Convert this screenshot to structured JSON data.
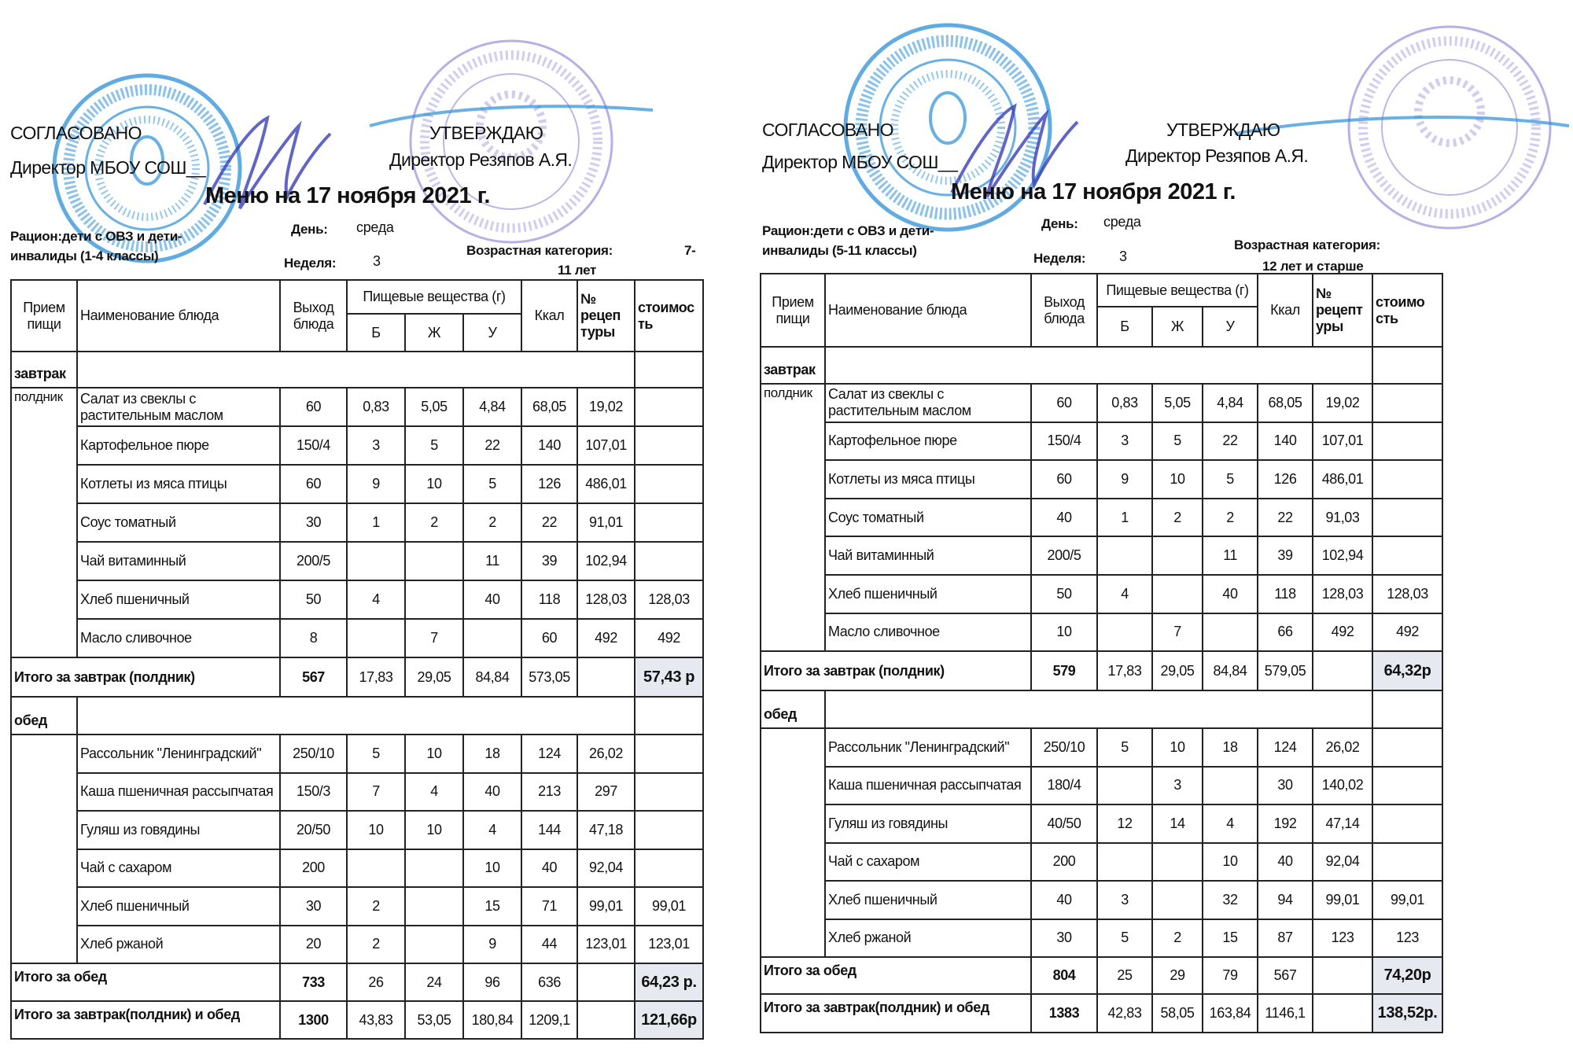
{
  "panels": [
    {
      "agreed": "СОГЛАСОВАНО",
      "agreed_by": "Директор МБОУ СОШ__",
      "approve": "УТВЕРЖДАЮ",
      "approve_by": "Директор Резяпов А.Я.",
      "title": "Меню на 17 ноября 2021 г.",
      "ration_line1": "Рацион:дети с ОВЗ и дети-",
      "ration_line2": "инвалиды (1-4 классы)",
      "day_label": "День:",
      "day_value": "среда",
      "week_label": "Неделя:",
      "week_value": "3",
      "age_label": "Возрастная категория:",
      "age_value_a": "7-",
      "age_value_b": "11 лет",
      "headers": {
        "meal": "Прием пищи",
        "dish": "Наименование блюда",
        "yield": "Выход блюда",
        "nutrients": "Пищевые вещества (г)",
        "b": "Б",
        "zh": "Ж",
        "u": "У",
        "kcal": "Ккал",
        "recipe": "№ рецеп туры",
        "cost": "стоимос ть"
      },
      "breakfast": {
        "label": "завтрак",
        "sublabel": "полдник",
        "items": [
          [
            "Салат из свеклы с растительным маслом",
            "60",
            "0,83",
            "5,05",
            "4,84",
            "68,05",
            "19,02",
            ""
          ],
          [
            "Картофельное пюре",
            "150/4",
            "3",
            "5",
            "22",
            "140",
            "107,01",
            ""
          ],
          [
            "Котлеты из мяса птицы",
            "60",
            "9",
            "10",
            "5",
            "126",
            "486,01",
            ""
          ],
          [
            "Соус томатный",
            "30",
            "1",
            "2",
            "2",
            "22",
            "91,01",
            ""
          ],
          [
            "Чай витаминный",
            "200/5",
            "",
            "",
            "11",
            "39",
            "102,94",
            ""
          ],
          [
            "Хлеб пшеничный",
            "50",
            "4",
            "",
            "40",
            "118",
            "128,03",
            "128,03"
          ],
          [
            "Масло сливочное",
            "8",
            "",
            "7",
            "",
            "60",
            "492",
            "492"
          ]
        ],
        "total": [
          "Итого за завтрак (полдник)",
          "567",
          "17,83",
          "29,05",
          "84,84",
          "573,05",
          "",
          "57,43 р"
        ]
      },
      "lunch": {
        "label": "обед",
        "items": [
          [
            "Рассольник \"Ленинградский\"",
            "250/10",
            "5",
            "10",
            "18",
            "124",
            "26,02",
            ""
          ],
          [
            "Каша пшеничная рассыпчатая",
            "150/3",
            "7",
            "4",
            "40",
            "213",
            "297",
            ""
          ],
          [
            "Гуляш из говядины",
            "20/50",
            "10",
            "10",
            "4",
            "144",
            "47,18",
            ""
          ],
          [
            "Чай с сахаром",
            "200",
            "",
            "",
            "10",
            "40",
            "92,04",
            ""
          ],
          [
            "Хлеб пшеничный",
            "30",
            "2",
            "",
            "15",
            "71",
            "99,01",
            "99,01"
          ],
          [
            "Хлеб ржаной",
            "20",
            "2",
            "",
            "9",
            "44",
            "123,01",
            "123,01"
          ]
        ],
        "total": [
          "Итого за обед",
          "733",
          "26",
          "24",
          "96",
          "636",
          "",
          "64,23 р."
        ]
      },
      "grand_total": [
        "Итого за завтрак(полдник) и обед",
        "1300",
        "43,83",
        "53,05",
        "180,84",
        "1209,1",
        "",
        "121,66р"
      ]
    },
    {
      "agreed": "СОГЛАСОВАНО",
      "agreed_by": "Директор МБОУ СОШ__",
      "approve": "УТВЕРЖДАЮ",
      "approve_by": "Директор Резяпов А.Я.",
      "title": "Меню на 17 ноября 2021 г.",
      "ration_line1": "Рацион:дети с ОВЗ и дети-",
      "ration_line2": "инвалиды (5-11 классы)",
      "day_label": "День:",
      "day_value": "среда",
      "week_label": "Неделя:",
      "week_value": "3",
      "age_label": "Возрастная категория:",
      "age_value_a": "",
      "age_value_b": "12 лет и старше",
      "headers": {
        "meal": "Прием пищи",
        "dish": "Наименование блюда",
        "yield": "Выход блюда",
        "nutrients": "Пищевые вещества (г)",
        "b": "Б",
        "zh": "Ж",
        "u": "У",
        "kcal": "Ккал",
        "recipe": "№ рецепт уры",
        "cost": "стоимо сть"
      },
      "breakfast": {
        "label": "завтрак",
        "sublabel": "полдник",
        "items": [
          [
            "Салат из свеклы с растительным маслом",
            "60",
            "0,83",
            "5,05",
            "4,84",
            "68,05",
            "19,02",
            ""
          ],
          [
            "Картофельное пюре",
            "150/4",
            "3",
            "5",
            "22",
            "140",
            "107,01",
            ""
          ],
          [
            "Котлеты из мяса птицы",
            "60",
            "9",
            "10",
            "5",
            "126",
            "486,01",
            ""
          ],
          [
            "Соус томатный",
            "40",
            "1",
            "2",
            "2",
            "22",
            "91,03",
            ""
          ],
          [
            "Чай витаминный",
            "200/5",
            "",
            "",
            "11",
            "39",
            "102,94",
            ""
          ],
          [
            "Хлеб пшеничный",
            "50",
            "4",
            "",
            "40",
            "118",
            "128,03",
            "128,03"
          ],
          [
            "Масло сливочное",
            "10",
            "",
            "7",
            "",
            "66",
            "492",
            "492"
          ]
        ],
        "total": [
          "Итого за завтрак (полдник)",
          "579",
          "17,83",
          "29,05",
          "84,84",
          "579,05",
          "",
          "64,32р"
        ]
      },
      "lunch": {
        "label": "обед",
        "items": [
          [
            "Рассольник \"Ленинградский\"",
            "250/10",
            "5",
            "10",
            "18",
            "124",
            "26,02",
            ""
          ],
          [
            "Каша пшеничная рассыпчатая",
            "180/4",
            "",
            "3",
            "",
            "30",
            "140,02",
            ""
          ],
          [
            "Гуляш из говядины",
            "40/50",
            "12",
            "14",
            "4",
            "192",
            "47,14",
            ""
          ],
          [
            "Чай с сахаром",
            "200",
            "",
            "",
            "10",
            "40",
            "92,04",
            ""
          ],
          [
            "Хлеб пшеничный",
            "40",
            "3",
            "",
            "32",
            "94",
            "99,01",
            "99,01"
          ],
          [
            "Хлеб ржаной",
            "30",
            "5",
            "2",
            "15",
            "87",
            "123",
            "123"
          ]
        ],
        "total": [
          "Итого за обед",
          "804",
          "25",
          "29",
          "79",
          "567",
          "",
          "74,20р"
        ]
      },
      "grand_total": [
        "Итого за завтрак(полдник) и обед",
        "1383",
        "42,83",
        "58,05",
        "163,84",
        "1146,1",
        "",
        "138,52р."
      ]
    }
  ],
  "colors": {
    "stamp_blue": "#2a8fd8",
    "stamp_purple": "#7b6fd0",
    "signature": "#3a3fb8",
    "total_cell": "#e6e9ef"
  }
}
